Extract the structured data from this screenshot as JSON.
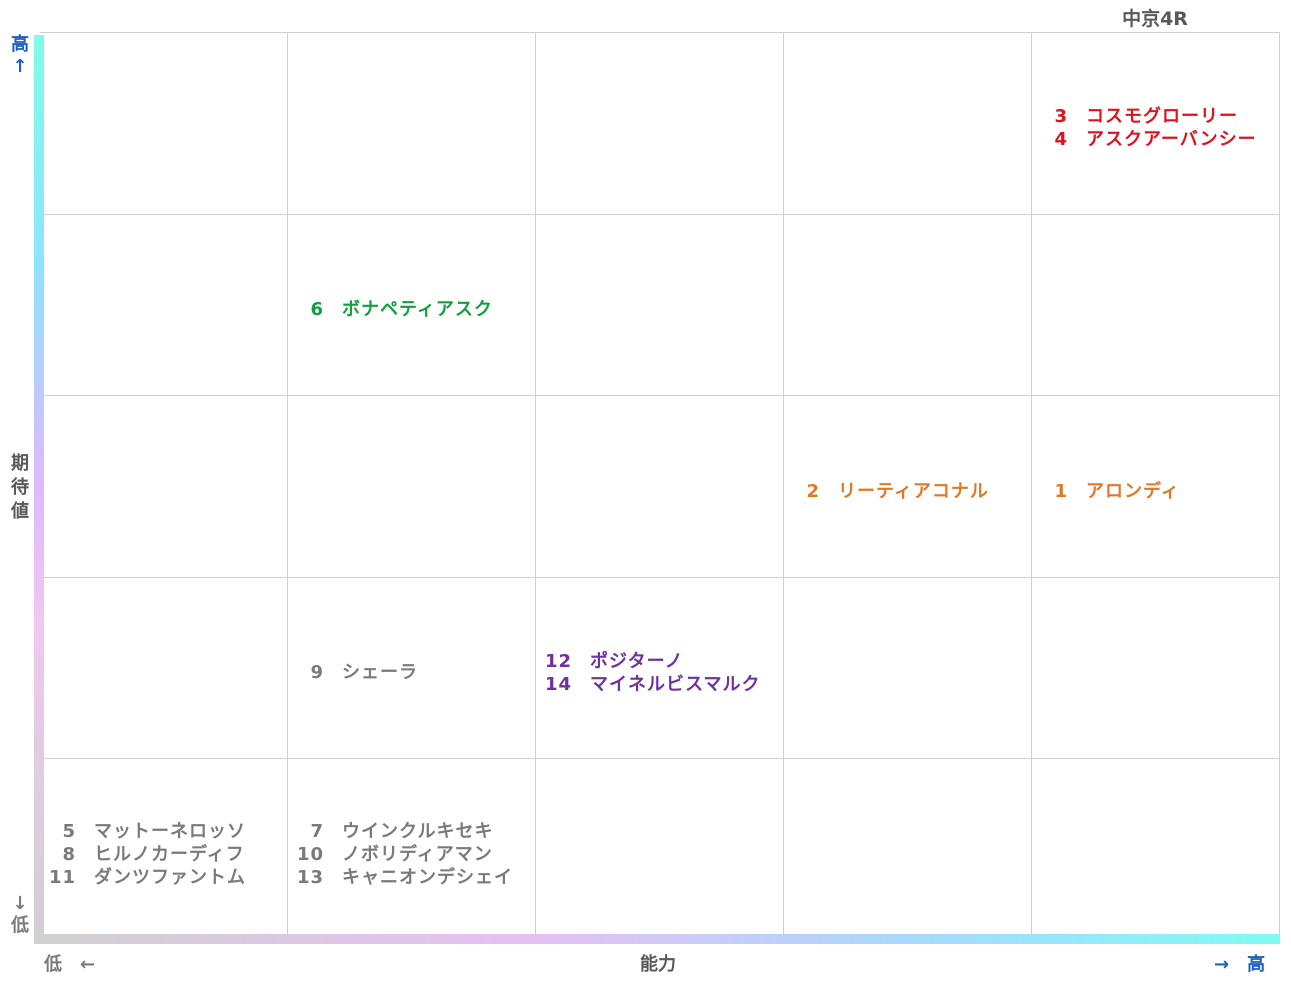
{
  "title": "中京4R",
  "axes": {
    "y_high": "高↑",
    "y_label_lines": [
      "期",
      "待",
      "値"
    ],
    "y_low": "↓低",
    "x_low": "低　←",
    "x_label": "能力",
    "x_high": "→　高"
  },
  "colors": {
    "red": "#e0101c",
    "green": "#10a040",
    "orange": "#e07828",
    "purple": "#7030a0",
    "gray": "#7a7a7a",
    "x_axis_label": "#595959",
    "y_axis_high": "#1f5fbf"
  },
  "chart_data": {
    "type": "table",
    "columns": 5,
    "rows": 5,
    "xlabel": "能力",
    "ylabel": "期待値",
    "groups": [
      {
        "col": 5,
        "row": 1,
        "color": "red",
        "horses": [
          {
            "num": "3",
            "name": "コスモグローリー"
          },
          {
            "num": "4",
            "name": "アスクアーバンシー"
          }
        ]
      },
      {
        "col": 2,
        "row": 2,
        "color": "green",
        "horses": [
          {
            "num": "6",
            "name": "ボナペティアスク"
          }
        ]
      },
      {
        "col": 4,
        "row": 3,
        "color": "orange",
        "horses": [
          {
            "num": "2",
            "name": "リーティアコナル"
          }
        ]
      },
      {
        "col": 5,
        "row": 3,
        "color": "orange",
        "horses": [
          {
            "num": "1",
            "name": "アロンディ"
          }
        ]
      },
      {
        "col": 2,
        "row": 4,
        "color": "gray",
        "horses": [
          {
            "num": "9",
            "name": "シェーラ"
          }
        ]
      },
      {
        "col": 3,
        "row": 4,
        "color": "purple",
        "horses": [
          {
            "num": "12",
            "name": "ポジターノ"
          },
          {
            "num": "14",
            "name": "マイネルビスマルク"
          }
        ]
      },
      {
        "col": 1,
        "row": 5,
        "color": "gray",
        "horses": [
          {
            "num": "5",
            "name": "マットーネロッソ"
          },
          {
            "num": "8",
            "name": "ヒルノカーディフ"
          },
          {
            "num": "11",
            "name": "ダンツファントム"
          }
        ]
      },
      {
        "col": 2,
        "row": 5,
        "color": "gray",
        "horses": [
          {
            "num": "7",
            "name": "ウインクルキセキ"
          },
          {
            "num": "10",
            "name": "ノボリディアマン"
          },
          {
            "num": "13",
            "name": "キャニオンデシェイ"
          }
        ]
      }
    ]
  }
}
